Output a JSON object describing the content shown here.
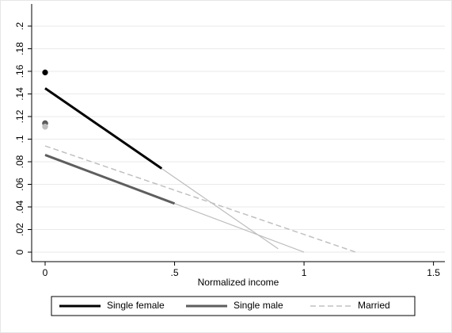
{
  "chart_data": {
    "type": "line",
    "xlabel": "Normalized income",
    "xlim": [
      -0.052,
      1.544
    ],
    "ylim": [
      -0.0084,
      0.2196
    ],
    "xticks": [
      0,
      {
        "value": 0.5,
        "label": ".5"
      },
      1,
      1.5
    ],
    "yticks": [
      0,
      {
        "value": 0.02,
        "label": ".02"
      },
      {
        "value": 0.04,
        "label": ".04"
      },
      {
        "value": 0.06,
        "label": ".06"
      },
      {
        "value": 0.08,
        "label": ".08"
      },
      {
        "value": 0.1,
        "label": ".1"
      },
      {
        "value": 0.12,
        "label": ".12"
      },
      {
        "value": 0.14,
        "label": ".14"
      },
      {
        "value": 0.16,
        "label": ".16"
      },
      {
        "value": 0.18,
        "label": ".18"
      },
      {
        "value": 0.2,
        "label": ".2"
      }
    ],
    "grid": true,
    "legend": "bottom",
    "extension_color": "#bdbdbd",
    "series": [
      {
        "name": "Single female",
        "color": "#000000",
        "dashed": false,
        "x": [
          0,
          0.45
        ],
        "values": [
          0.145,
          0.074
        ],
        "extension_x": [
          0.45,
          0.9
        ],
        "extension_values": [
          0.074,
          0.003
        ],
        "point_x": 0,
        "point": 0.159
      },
      {
        "name": "Single male",
        "color": "#5e5e5e",
        "dashed": false,
        "x": [
          0,
          0.5
        ],
        "values": [
          0.086,
          0.043
        ],
        "extension_x": [
          0.5,
          1.0
        ],
        "extension_values": [
          0.043,
          0
        ],
        "point_x": 0,
        "point": 0.114
      },
      {
        "name": "Married",
        "color": "#c0c0c0",
        "dashed": true,
        "x": [
          0,
          1.2
        ],
        "values": [
          0.094,
          0
        ],
        "point_x": 0,
        "point": 0.111
      }
    ]
  }
}
